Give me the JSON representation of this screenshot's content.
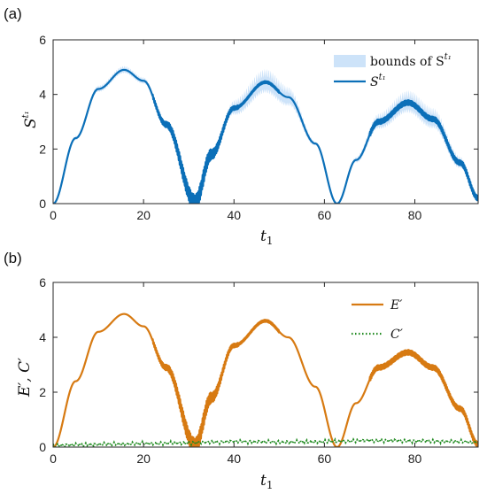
{
  "figure": {
    "panels": [
      {
        "label": "(a)",
        "xlabel": "t",
        "xlabel_sub": "1",
        "ylabel": "S",
        "ylabel_sup": "t₁",
        "legend": [
          {
            "name": "bounds of S",
            "sup": "t₁",
            "kind": "band",
            "color": "#cde3f9"
          },
          {
            "name": "S",
            "sup": "t₁",
            "kind": "line",
            "color": "#0b6fb8"
          }
        ]
      },
      {
        "label": "(b)",
        "xlabel": "t",
        "xlabel_sub": "1",
        "ylabel": "E′, C′",
        "legend": [
          {
            "name": "E′",
            "kind": "line",
            "color": "#d77a12"
          },
          {
            "name": "C′",
            "kind": "dotted",
            "color": "#1f8a1f"
          }
        ]
      }
    ]
  },
  "chart_data": [
    {
      "type": "line",
      "panel": "(a)",
      "title": "",
      "xlabel": "t1",
      "ylabel": "S^t1",
      "xlim": [
        0,
        94
      ],
      "ylim": [
        0,
        6
      ],
      "xticks": [
        0,
        20,
        40,
        60,
        80
      ],
      "yticks": [
        0,
        2,
        4,
        6
      ],
      "grid": false,
      "legend_position": "top-right",
      "series": [
        {
          "name": "S^t1",
          "color": "#0b6fb8",
          "description_points": {
            "x": [
              0,
              5,
              10,
              15.7,
              20,
              25,
              31.4,
              35,
              40,
              47,
              52,
              58,
              62.8,
              67,
              72,
              78.5,
              84,
              90,
              94
            ],
            "y": [
              0,
              2.4,
              4.2,
              4.9,
              4.5,
              2.9,
              0.05,
              1.8,
              3.5,
              4.45,
              3.9,
              2.2,
              0.0,
              1.6,
              3.0,
              3.7,
              3.1,
              1.5,
              0.2
            ]
          }
        },
        {
          "name": "bounds of S^t1",
          "color": "#cde3f9",
          "upper_peaks": [
            4.95,
            4.8,
            3.9
          ],
          "lower_peaks": [
            4.75,
            4.3,
            3.2
          ]
        }
      ]
    },
    {
      "type": "line",
      "panel": "(b)",
      "title": "",
      "xlabel": "t1",
      "ylabel": "E', C'",
      "xlim": [
        0,
        94
      ],
      "ylim": [
        0,
        6
      ],
      "xticks": [
        0,
        20,
        40,
        60,
        80
      ],
      "yticks": [
        0,
        2,
        4,
        6
      ],
      "grid": false,
      "legend_position": "top-right",
      "series": [
        {
          "name": "E'",
          "color": "#d77a12",
          "description_points": {
            "x": [
              0,
              5,
              10,
              15.7,
              20,
              25,
              31.4,
              35,
              40,
              47,
              52,
              58,
              62.8,
              67,
              72,
              78.5,
              84,
              90,
              94
            ],
            "y": [
              0,
              2.4,
              4.2,
              4.85,
              4.4,
              2.9,
              0.05,
              1.8,
              3.7,
              4.6,
              4.0,
              2.2,
              0.0,
              1.6,
              2.9,
              3.45,
              2.9,
              1.4,
              0.1
            ]
          }
        },
        {
          "name": "C'",
          "color": "#1f8a1f",
          "x": [
            0,
            10,
            20,
            30,
            40,
            50,
            60,
            70,
            80,
            90,
            94
          ],
          "y": [
            0.06,
            0.1,
            0.13,
            0.15,
            0.2,
            0.18,
            0.2,
            0.24,
            0.22,
            0.2,
            0.18
          ]
        }
      ]
    }
  ]
}
